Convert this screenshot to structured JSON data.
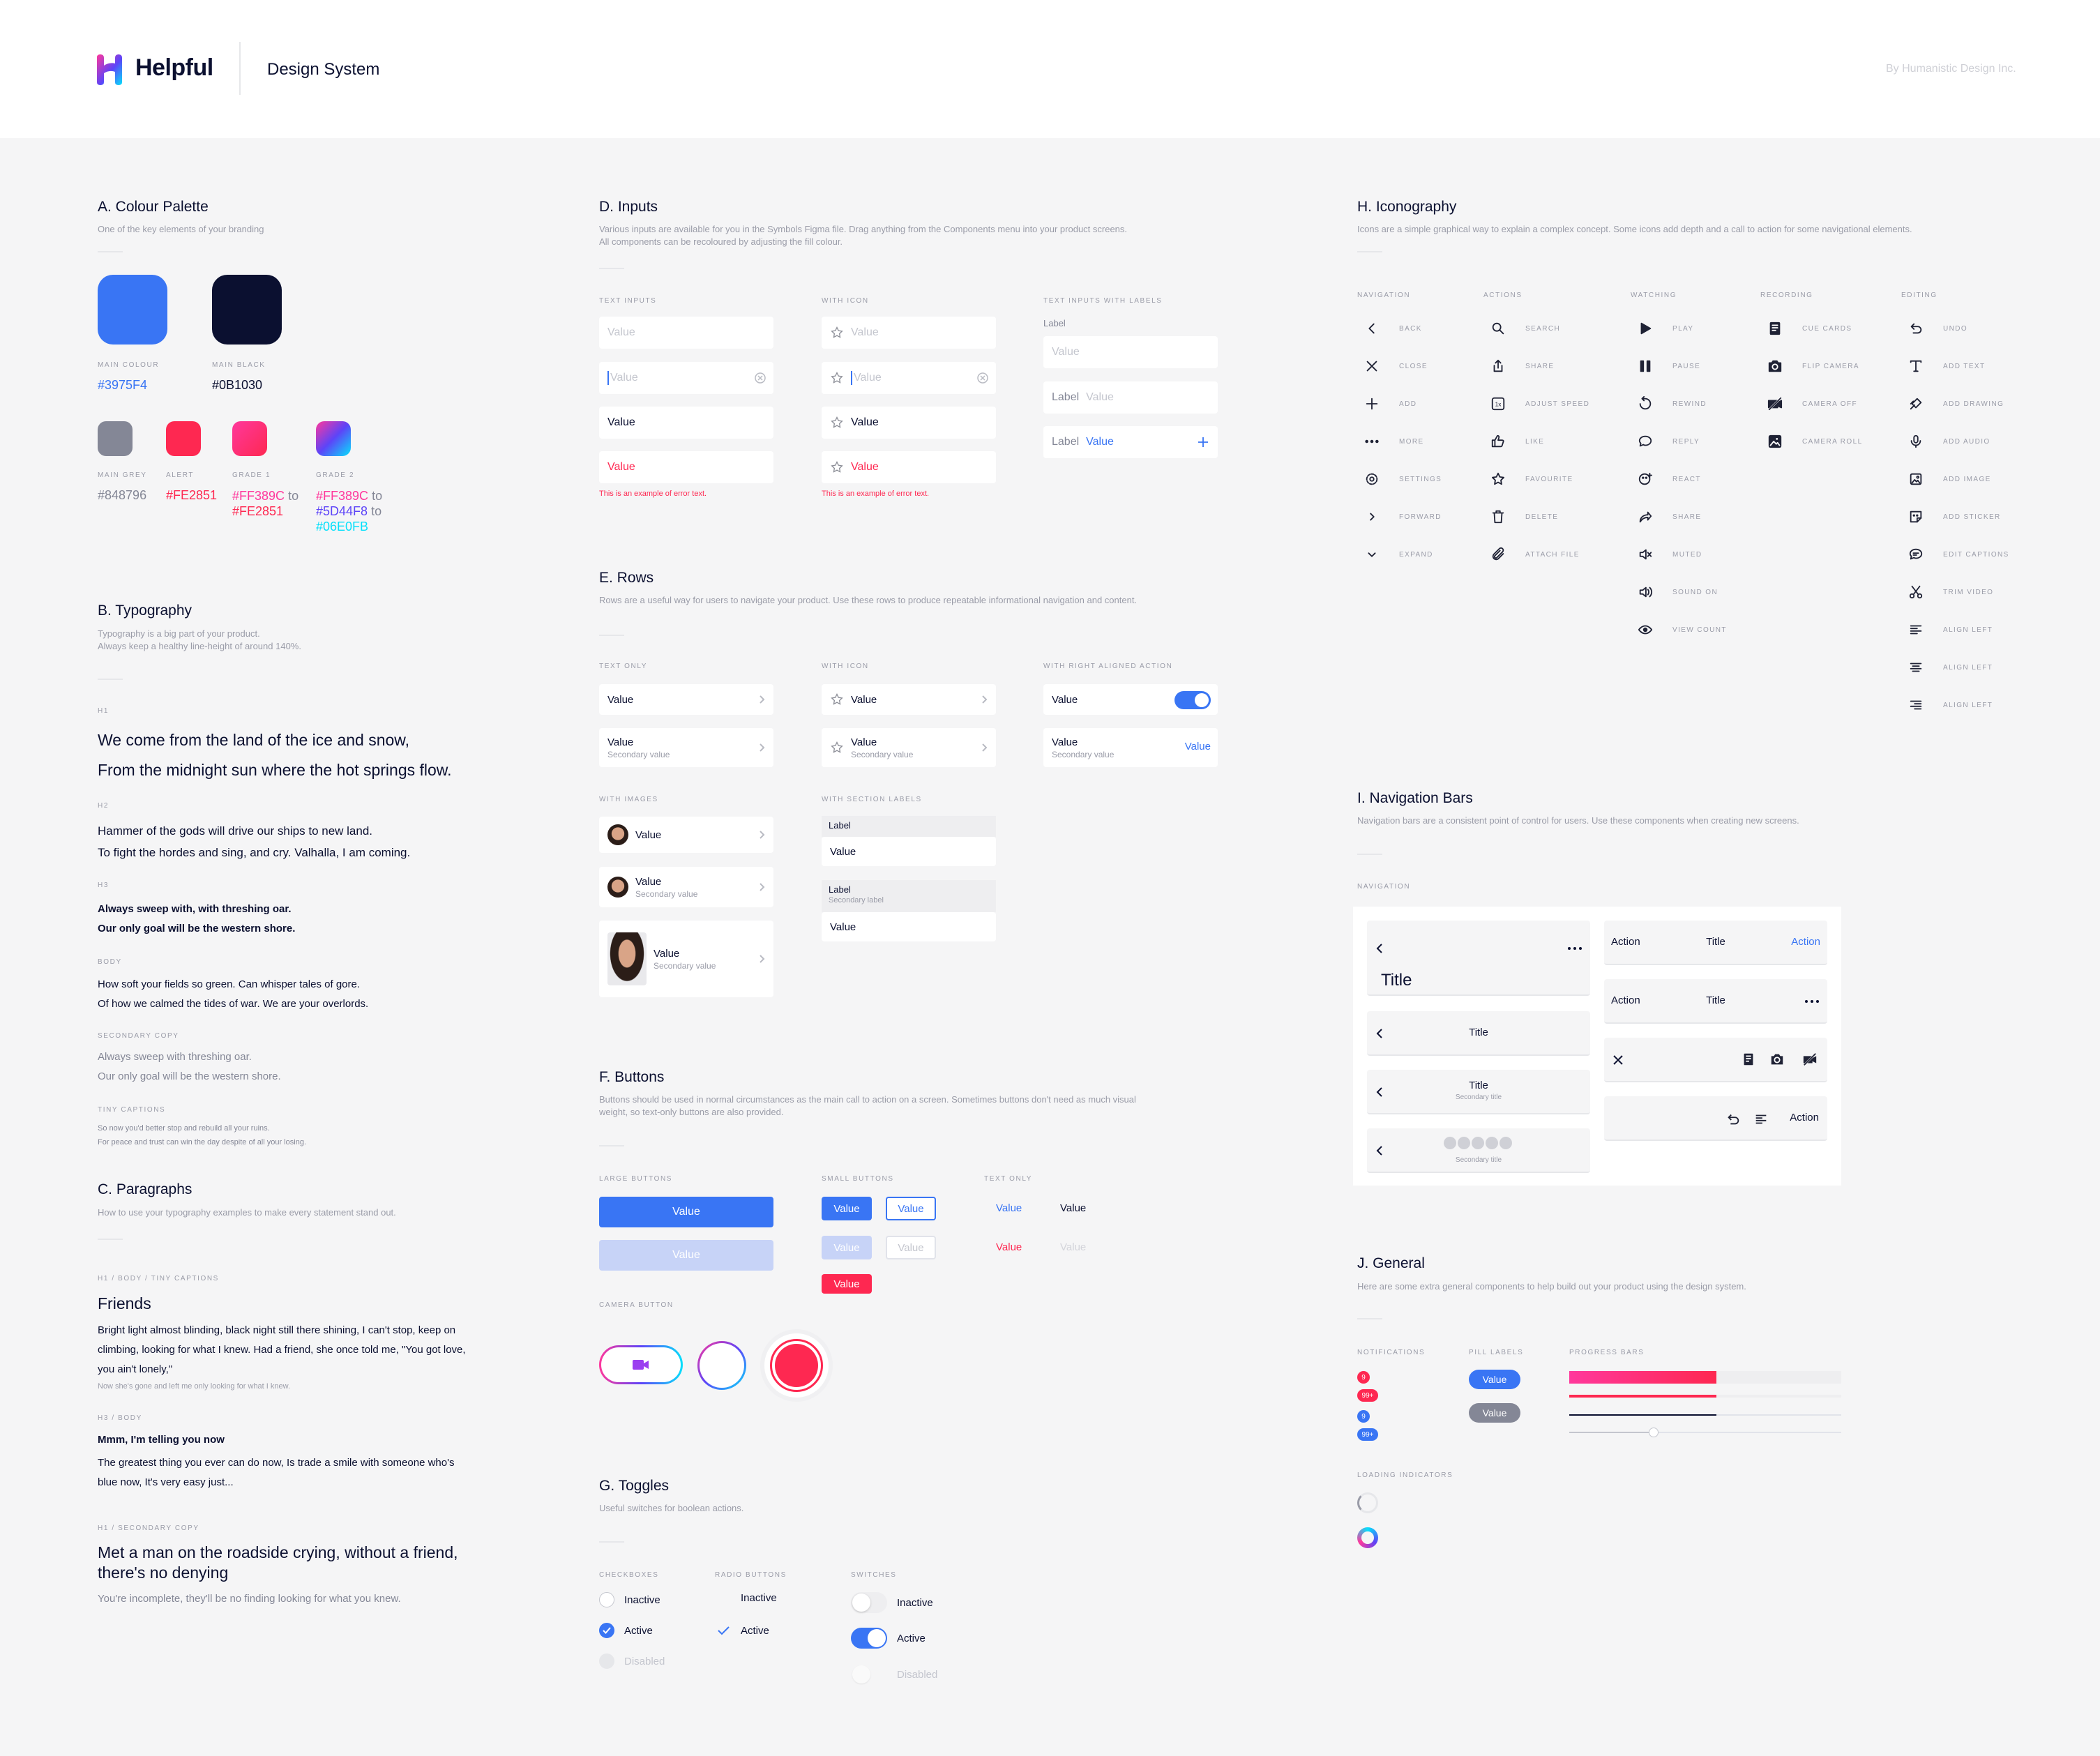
{
  "header": {
    "brand": "Helpful",
    "subtitle": "Design System",
    "credit": "By Humanistic Design Inc."
  },
  "palette": {
    "title": "A. Colour Palette",
    "desc": "One of the key elements of your branding",
    "main": [
      {
        "label": "MAIN COLOUR",
        "hex": "#3975F4"
      },
      {
        "label": "MAIN BLACK",
        "hex": "#0B1030"
      }
    ],
    "small": [
      {
        "label": "MAIN GREY",
        "hex": "#848796"
      },
      {
        "label": "ALERT",
        "hex": "#FE2851"
      }
    ],
    "grade1": {
      "label": "GRADE 1",
      "from": "#FF389C",
      "to": "#FE2851",
      "word": "to"
    },
    "grade2": {
      "label": "GRADE 2",
      "a": "#FF389C",
      "b": "#5D44F8",
      "c": "#06E0FB",
      "word": "to"
    }
  },
  "typography": {
    "title": "B. Typography",
    "desc1": "Typography is a big part of your product.",
    "desc2": "Always keep a healthy line-height of around 140%.",
    "h1": {
      "label": "H1",
      "l1": "We come from the land of the ice and snow,",
      "l2": "From the midnight sun where the hot springs flow."
    },
    "h2": {
      "label": "H2",
      "l1": "Hammer of the gods will drive our ships to new land.",
      "l2": "To fight the hordes and sing, and cry. Valhalla, I am coming."
    },
    "h3": {
      "label": "H3",
      "l1": "Always sweep with, with threshing oar.",
      "l2": "Our only goal will be the western shore."
    },
    "body": {
      "label": "BODY",
      "l1": "How soft your fields so green. Can whisper tales of gore.",
      "l2": "Of how we calmed the tides of war. We are your overlords."
    },
    "secondary": {
      "label": "SECONDARY COPY",
      "l1": "Always sweep with threshing oar.",
      "l2": "Our only goal will be the western shore."
    },
    "tiny": {
      "label": "TINY CAPTIONS",
      "l1": "So now you'd better stop and rebuild all your ruins.",
      "l2": "For peace and trust can win the day despite of all your losing."
    }
  },
  "paragraphs": {
    "title": "C. Paragraphs",
    "desc": "How to use your typography examples to make every statement stand out.",
    "p1": {
      "label": "H1 / BODY / TINY CAPTIONS",
      "heading": "Friends",
      "body": "Bright light almost blinding, black night still there shining, I can't stop, keep on climbing, looking for what I knew. Had a friend, she once told me, \"You got love, you ain't lonely,\"",
      "caption": "Now she's gone and left me only looking for what I knew."
    },
    "p2": {
      "label": "H3 / BODY",
      "heading": "Mmm, I'm telling you now",
      "body": "The greatest thing you ever can do now, Is trade a smile with someone who's blue now, It's very easy just..."
    },
    "p3": {
      "label": "H1 / SECONDARY COPY",
      "heading": "Met a man on the roadside crying, without a friend, there's no denying",
      "body": "You're incomplete, they'll be no finding looking for what you knew."
    }
  },
  "inputs": {
    "title": "D. Inputs",
    "desc1": "Various inputs are available for you in the Symbols Figma file. Drag anything from the Components menu into your product screens.",
    "desc2": "All components can be recoloured by adjusting the fill colour.",
    "col1": "TEXT INPUTS",
    "col2": "WITH ICON",
    "col3": "TEXT INPUTS WITH LABELS",
    "value": "Value",
    "label": "Label",
    "error": "This is an example of error text."
  },
  "rows": {
    "title": "E. Rows",
    "desc": "Rows are a useful way for users to navigate your product. Use these rows to produce repeatable informational navigation and content.",
    "col1": "TEXT ONLY",
    "col2": "WITH ICON",
    "col3": "WITH RIGHT ALIGNED ACTION",
    "col4": "WITH IMAGES",
    "col5": "WITH SECTION LABELS",
    "value": "Value",
    "secondary": "Secondary value",
    "label": "Label",
    "secondary_label": "Secondary label"
  },
  "buttons": {
    "title": "F. Buttons",
    "desc1": "Buttons should be used in normal circumstances as the main call to action on a screen. Sometimes buttons don't need as much visual",
    "desc2": "weight, so text-only buttons are also provided.",
    "large": "LARGE BUTTONS",
    "small": "SMALL BUTTONS",
    "text": "TEXT ONLY",
    "camera": "CAMERA BUTTON",
    "value": "Value"
  },
  "toggles": {
    "title": "G. Toggles",
    "desc": "Useful switches for boolean actions.",
    "c1": "CHECKBOXES",
    "c2": "RADIO BUTTONS",
    "c3": "SWITCHES",
    "inactive": "Inactive",
    "active": "Active",
    "disabled": "Disabled"
  },
  "icons": {
    "title": "H. Iconography",
    "desc": "Icons are a simple graphical way to explain a complex concept. Some icons add depth and a call to action for some navigational elements.",
    "cols": [
      "NAVIGATION",
      "ACTIONS",
      "WATCHING",
      "RECORDING",
      "EDITING"
    ],
    "navigation": [
      "BACK",
      "CLOSE",
      "ADD",
      "MORE",
      "SETTINGS",
      "FORWARD",
      "EXPAND"
    ],
    "actions": [
      "SEARCH",
      "SHARE",
      "ADJUST SPEED",
      "LIKE",
      "FAVOURITE",
      "DELETE",
      "ATTACH FILE"
    ],
    "watching": [
      "PLAY",
      "PAUSE",
      "REWIND",
      "REPLY",
      "REACT",
      "SHARE",
      "MUTED",
      "SOUND ON",
      "VIEW COUNT"
    ],
    "recording": [
      "CUE CARDS",
      "FLIP CAMERA",
      "CAMERA OFF",
      "CAMERA ROLL"
    ],
    "editing": [
      "UNDO",
      "ADD TEXT",
      "ADD DRAWING",
      "ADD AUDIO",
      "ADD IMAGE",
      "ADD STICKER",
      "EDIT CAPTIONS",
      "TRIM VIDEO",
      "ALIGN LEFT",
      "ALIGN LEFT",
      "ALIGN LEFT"
    ],
    "speed": "1x"
  },
  "navbars": {
    "title": "I. Navigation Bars",
    "desc": "Navigation bars are a consistent point of control for users. Use these components when creating new screens.",
    "label": "NAVIGATION",
    "title_text": "Title",
    "secondary": "Secondary title",
    "action": "Action"
  },
  "general": {
    "title": "J. General",
    "desc": "Here are some extra general components to help build out your product using the design system.",
    "notif": "NOTIFICATIONS",
    "pills": "PILL LABELS",
    "progress": "PROGRESS BARS",
    "loading": "LOADING INDICATORS",
    "badges": [
      "9",
      "99+",
      "9",
      "99+"
    ],
    "pill": "Value",
    "bars": [
      0.54,
      0.54,
      0.54,
      0.31
    ]
  },
  "colors": {
    "blue": "#3975F4",
    "black": "#0B1030",
    "grey": "#848796",
    "alert": "#FE2851",
    "pink": "#FF389C",
    "purple": "#5D44F8",
    "cyan": "#06E0FB"
  }
}
